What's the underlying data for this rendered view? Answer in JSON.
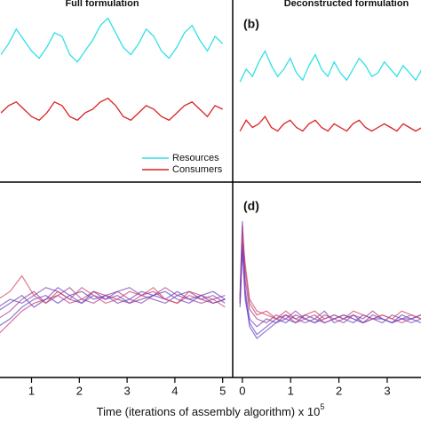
{
  "chart_data": [
    {
      "type": "line",
      "title": "Full formulation",
      "xlim": [
        0.34,
        5.21
      ],
      "ylim": [
        0,
        100
      ],
      "legend": "lower right",
      "x": [
        0.36,
        0.52,
        0.68,
        0.84,
        1.0,
        1.16,
        1.32,
        1.48,
        1.64,
        1.8,
        1.96,
        2.12,
        2.28,
        2.44,
        2.6,
        2.76,
        2.92,
        3.08,
        3.24,
        3.4,
        3.56,
        3.72,
        3.88,
        4.04,
        4.2,
        4.36,
        4.52,
        4.68,
        4.84,
        5.0
      ],
      "series": [
        {
          "name": "Resources",
          "color": "#33e0e6",
          "values": [
            70,
            76,
            84,
            78,
            72,
            68,
            74,
            82,
            80,
            70,
            66,
            72,
            78,
            86,
            90,
            82,
            74,
            70,
            76,
            84,
            80,
            72,
            68,
            74,
            82,
            86,
            78,
            72,
            80,
            76
          ]
        },
        {
          "name": "Consumers",
          "color": "#dd2222",
          "values": [
            38,
            42,
            44,
            40,
            36,
            34,
            38,
            44,
            42,
            36,
            34,
            38,
            40,
            44,
            46,
            42,
            36,
            34,
            38,
            42,
            40,
            36,
            34,
            38,
            42,
            44,
            40,
            36,
            42,
            40
          ]
        }
      ]
    },
    {
      "type": "line",
      "title": "Deconstructed formulation",
      "panel_label": "(b)",
      "xlim": [
        -0.2,
        3.7
      ],
      "ylim": [
        0,
        100
      ],
      "x": [
        -0.05,
        0.08,
        0.21,
        0.34,
        0.47,
        0.6,
        0.73,
        0.86,
        0.99,
        1.12,
        1.25,
        1.38,
        1.51,
        1.64,
        1.77,
        1.9,
        2.03,
        2.16,
        2.29,
        2.42,
        2.55,
        2.68,
        2.81,
        2.94,
        3.07,
        3.2,
        3.33,
        3.46,
        3.59,
        3.72
      ],
      "series": [
        {
          "color": "#33e0e6",
          "values": [
            55,
            62,
            58,
            66,
            72,
            64,
            58,
            62,
            68,
            60,
            56,
            64,
            70,
            62,
            58,
            66,
            60,
            56,
            62,
            68,
            64,
            58,
            60,
            66,
            62,
            58,
            64,
            60,
            56,
            62
          ]
        },
        {
          "color": "#dd2222",
          "values": [
            28,
            34,
            30,
            32,
            36,
            30,
            28,
            32,
            34,
            30,
            28,
            32,
            34,
            30,
            28,
            32,
            30,
            28,
            32,
            34,
            30,
            28,
            30,
            32,
            30,
            28,
            32,
            30,
            28,
            30
          ]
        }
      ]
    },
    {
      "type": "line",
      "xlim": [
        0.34,
        5.21
      ],
      "ylim": [
        0,
        100
      ],
      "xticks": [
        1,
        2,
        3,
        4,
        5
      ],
      "x": [
        0.3,
        0.55,
        0.8,
        1.05,
        1.3,
        1.55,
        1.8,
        2.05,
        2.3,
        2.55,
        2.8,
        3.05,
        3.3,
        3.55,
        3.8,
        4.05,
        4.3,
        4.55,
        4.8,
        5.05
      ],
      "series": [
        {
          "color": "#cc3366",
          "values": [
            22,
            28,
            34,
            38,
            40,
            42,
            38,
            40,
            44,
            42,
            40,
            38,
            42,
            44,
            40,
            38,
            42,
            40,
            38,
            40
          ]
        },
        {
          "color": "#a03a8a",
          "values": [
            30,
            34,
            40,
            44,
            38,
            42,
            46,
            40,
            38,
            42,
            44,
            40,
            38,
            42,
            46,
            42,
            40,
            38,
            40,
            42
          ]
        },
        {
          "color": "#7a3fb0",
          "values": [
            36,
            40,
            38,
            42,
            46,
            44,
            40,
            38,
            42,
            40,
            44,
            46,
            42,
            40,
            38,
            42,
            44,
            40,
            42,
            38
          ]
        },
        {
          "color": "#5a40c8",
          "values": [
            26,
            30,
            36,
            40,
            42,
            38,
            42,
            44,
            40,
            42,
            38,
            40,
            44,
            42,
            40,
            44,
            40,
            42,
            38,
            40
          ]
        },
        {
          "color": "#d04060",
          "values": [
            40,
            44,
            52,
            42,
            38,
            44,
            40,
            46,
            42,
            38,
            40,
            44,
            42,
            46,
            40,
            38,
            44,
            42,
            40,
            36
          ]
        },
        {
          "color": "#6a3cc0",
          "values": [
            34,
            38,
            42,
            36,
            40,
            46,
            42,
            38,
            44,
            40,
            42,
            38,
            40,
            42,
            44,
            40,
            38,
            42,
            44,
            40
          ]
        }
      ]
    },
    {
      "type": "line",
      "panel_label": "(d)",
      "xlim": [
        -0.2,
        3.7
      ],
      "ylim": [
        0,
        100
      ],
      "xticks": [
        0,
        1,
        2,
        3
      ],
      "x": [
        -0.05,
        0.0,
        0.06,
        0.15,
        0.3,
        0.5,
        0.7,
        0.9,
        1.1,
        1.3,
        1.5,
        1.7,
        1.9,
        2.1,
        2.3,
        2.5,
        2.7,
        2.9,
        3.1,
        3.3,
        3.5,
        3.7
      ],
      "series": [
        {
          "color": "#cc3366",
          "values": [
            40,
            78,
            55,
            38,
            32,
            34,
            30,
            32,
            28,
            30,
            32,
            28,
            30,
            32,
            30,
            28,
            30,
            32,
            30,
            28,
            30,
            32
          ]
        },
        {
          "color": "#a03a8a",
          "values": [
            38,
            70,
            50,
            35,
            30,
            28,
            32,
            30,
            34,
            30,
            28,
            32,
            30,
            28,
            32,
            30,
            34,
            30,
            28,
            30,
            32,
            30
          ]
        },
        {
          "color": "#7a3fb0",
          "values": [
            42,
            80,
            45,
            30,
            26,
            30,
            28,
            32,
            30,
            28,
            30,
            34,
            28,
            30,
            32,
            28,
            30,
            28,
            32,
            30,
            28,
            30
          ]
        },
        {
          "color": "#5a40c8",
          "values": [
            36,
            65,
            40,
            28,
            22,
            26,
            30,
            28,
            32,
            30,
            28,
            30,
            32,
            30,
            28,
            32,
            30,
            30,
            28,
            32,
            30,
            28
          ]
        },
        {
          "color": "#d04060",
          "values": [
            40,
            72,
            58,
            40,
            34,
            32,
            30,
            34,
            30,
            32,
            34,
            30,
            32,
            30,
            34,
            32,
            30,
            32,
            30,
            34,
            32,
            30
          ]
        },
        {
          "color": "#6a3cc0",
          "values": [
            38,
            68,
            42,
            26,
            20,
            24,
            28,
            30,
            28,
            32,
            30,
            28,
            30,
            32,
            30,
            28,
            32,
            30,
            28,
            30,
            30,
            32
          ]
        }
      ]
    }
  ],
  "xlabel": "Time (iterations of assembly algorithm) x 10",
  "xlabel_superscript": "5"
}
